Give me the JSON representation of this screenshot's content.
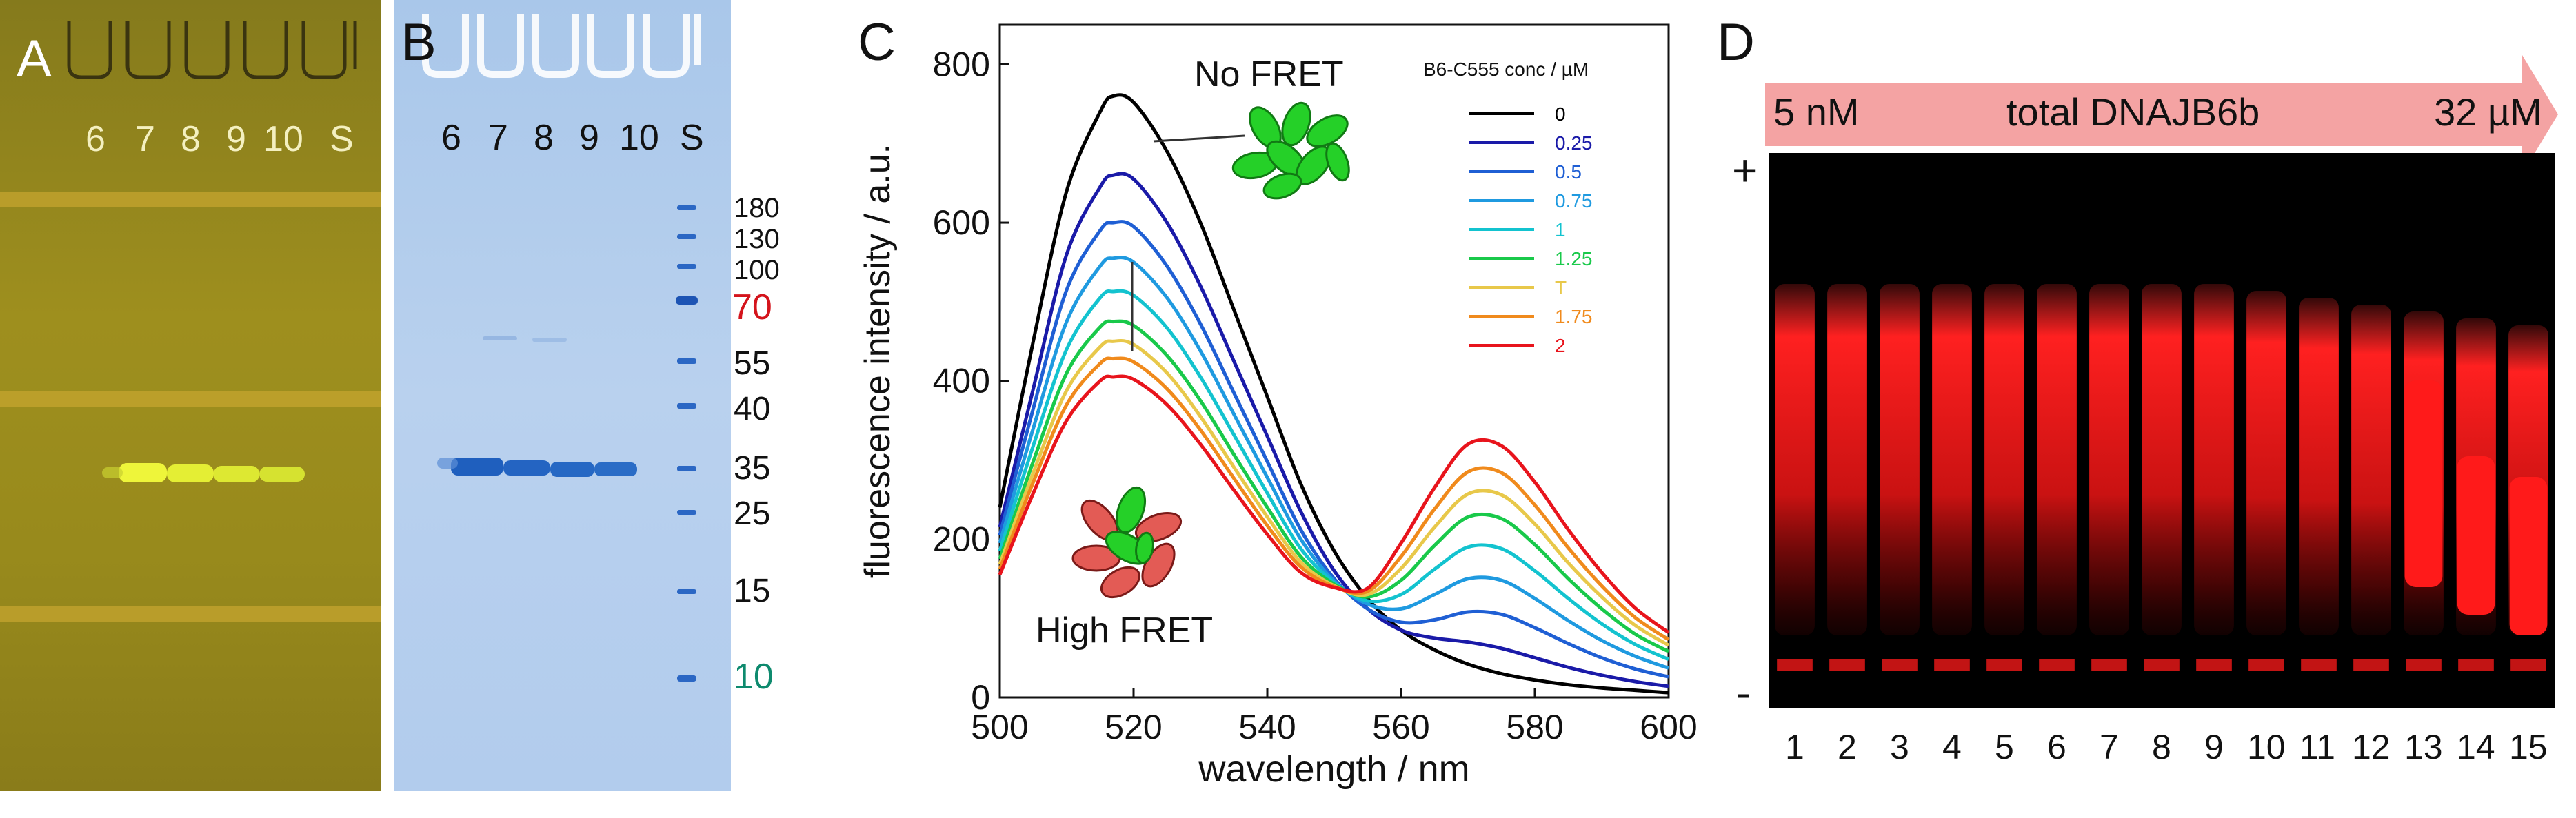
{
  "panels": {
    "A": {
      "label": "A",
      "lanes": [
        "6",
        "7",
        "8",
        "9",
        "10",
        "S"
      ]
    },
    "B": {
      "label": "B",
      "lanes": [
        "6",
        "7",
        "8",
        "9",
        "10",
        "S"
      ],
      "markers": [
        {
          "text": "180",
          "color": "#111111"
        },
        {
          "text": "130",
          "color": "#111111"
        },
        {
          "text": "100",
          "color": "#111111"
        },
        {
          "text": "70",
          "color": "#d4141c"
        },
        {
          "text": "55",
          "color": "#111111"
        },
        {
          "text": "40",
          "color": "#111111"
        },
        {
          "text": "35",
          "color": "#111111"
        },
        {
          "text": "25",
          "color": "#111111"
        },
        {
          "text": "15",
          "color": "#111111"
        },
        {
          "text": "10",
          "color": "#0e8a6e"
        }
      ]
    },
    "C": {
      "label": "C",
      "annotation_top": "No FRET",
      "annotation_bottom": "High FRET"
    },
    "D": {
      "label": "D",
      "arrow_left": "5 nM",
      "arrow_center": "total DNAJB6b",
      "arrow_right": "32 µM",
      "plus_sign": "+",
      "minus_sign": "-",
      "lanes": [
        "1",
        "2",
        "3",
        "4",
        "5",
        "6",
        "7",
        "8",
        "9",
        "10",
        "11",
        "12",
        "13",
        "14",
        "15"
      ]
    }
  },
  "chart_data": {
    "type": "line",
    "title": "",
    "xlabel": "wavelength / nm",
    "ylabel": "fluorescence intensity / a.u.",
    "xlim": [
      500,
      600
    ],
    "ylim": [
      0,
      850
    ],
    "xticks": [
      "500",
      "520",
      "540",
      "560",
      "580",
      "600"
    ],
    "yticks": [
      "0",
      "200",
      "400",
      "600",
      "800"
    ],
    "legend_title": "B6-C555 conc / µM",
    "legend_position": "top-right",
    "series": [
      {
        "name": "0",
        "color": "#000000",
        "x": [
          500,
          505,
          510,
          515,
          517,
          520,
          525,
          530,
          535,
          540,
          545,
          550,
          555,
          560,
          565,
          570,
          575,
          580,
          585,
          590,
          595,
          600
        ],
        "y": [
          240,
          450,
          640,
          740,
          760,
          752,
          690,
          600,
          490,
          380,
          270,
          185,
          125,
          85,
          60,
          42,
          30,
          22,
          16,
          12,
          9,
          6
        ]
      },
      {
        "name": "0.25",
        "color": "#1a1aa8",
        "x": [
          500,
          505,
          510,
          515,
          517,
          520,
          525,
          530,
          535,
          540,
          545,
          550,
          555,
          560,
          565,
          570,
          575,
          580,
          585,
          590,
          595,
          600
        ],
        "y": [
          215,
          390,
          560,
          645,
          660,
          655,
          600,
          520,
          425,
          330,
          235,
          160,
          112,
          85,
          75,
          70,
          62,
          50,
          38,
          28,
          20,
          14
        ]
      },
      {
        "name": "0.5",
        "color": "#1f5fd4",
        "x": [
          500,
          505,
          510,
          515,
          517,
          520,
          525,
          530,
          535,
          540,
          545,
          550,
          555,
          560,
          565,
          570,
          575,
          580,
          585,
          590,
          595,
          600
        ],
        "y": [
          205,
          365,
          515,
          590,
          600,
          595,
          545,
          472,
          385,
          298,
          212,
          150,
          112,
          95,
          98,
          108,
          105,
          88,
          68,
          50,
          36,
          26
        ]
      },
      {
        "name": "0.75",
        "color": "#1f9ae0",
        "x": [
          500,
          505,
          510,
          515,
          517,
          520,
          525,
          530,
          535,
          540,
          545,
          550,
          555,
          560,
          565,
          570,
          575,
          580,
          585,
          590,
          595,
          600
        ],
        "y": [
          195,
          340,
          475,
          545,
          555,
          550,
          505,
          438,
          358,
          278,
          200,
          147,
          118,
          112,
          130,
          150,
          148,
          125,
          97,
          72,
          52,
          37
        ]
      },
      {
        "name": "1",
        "color": "#13c3cf",
        "x": [
          500,
          505,
          510,
          515,
          517,
          520,
          525,
          530,
          535,
          540,
          545,
          550,
          555,
          560,
          565,
          570,
          575,
          580,
          585,
          590,
          595,
          600
        ],
        "y": [
          185,
          318,
          440,
          505,
          513,
          508,
          467,
          405,
          332,
          258,
          188,
          145,
          122,
          130,
          162,
          190,
          188,
          160,
          125,
          93,
          67,
          48
        ]
      },
      {
        "name": "1.25",
        "color": "#19c94a",
        "x": [
          500,
          505,
          510,
          515,
          517,
          520,
          525,
          530,
          535,
          540,
          545,
          550,
          555,
          560,
          565,
          570,
          575,
          580,
          585,
          590,
          595,
          600
        ],
        "y": [
          175,
          298,
          410,
          468,
          475,
          470,
          432,
          375,
          307,
          240,
          178,
          143,
          127,
          148,
          192,
          228,
          226,
          193,
          150,
          112,
          80,
          58
        ]
      },
      {
        "name": "T",
        "color": "#e8c84a",
        "x": [
          500,
          505,
          510,
          515,
          517,
          520,
          525,
          530,
          535,
          540,
          545,
          550,
          555,
          560,
          565,
          570,
          575,
          580,
          585,
          590,
          595,
          600
        ],
        "y": [
          168,
          284,
          388,
          443,
          450,
          446,
          410,
          355,
          291,
          228,
          171,
          141,
          130,
          163,
          215,
          257,
          256,
          219,
          170,
          127,
          91,
          66
        ]
      },
      {
        "name": "1.75",
        "color": "#f08a1c",
        "x": [
          500,
          505,
          510,
          515,
          517,
          520,
          525,
          530,
          535,
          540,
          545,
          550,
          555,
          560,
          565,
          570,
          575,
          580,
          585,
          590,
          595,
          600
        ],
        "y": [
          162,
          272,
          370,
          422,
          428,
          424,
          390,
          338,
          277,
          217,
          165,
          140,
          134,
          178,
          238,
          285,
          284,
          243,
          189,
          141,
          101,
          73
        ]
      },
      {
        "name": "2",
        "color": "#e8141c",
        "x": [
          500,
          505,
          510,
          515,
          517,
          520,
          525,
          530,
          535,
          540,
          545,
          550,
          555,
          560,
          565,
          570,
          575,
          580,
          585,
          590,
          595,
          600
        ],
        "y": [
          155,
          258,
          350,
          400,
          405,
          402,
          370,
          320,
          262,
          206,
          158,
          139,
          138,
          195,
          265,
          320,
          318,
          272,
          212,
          158,
          113,
          82
        ]
      }
    ]
  }
}
